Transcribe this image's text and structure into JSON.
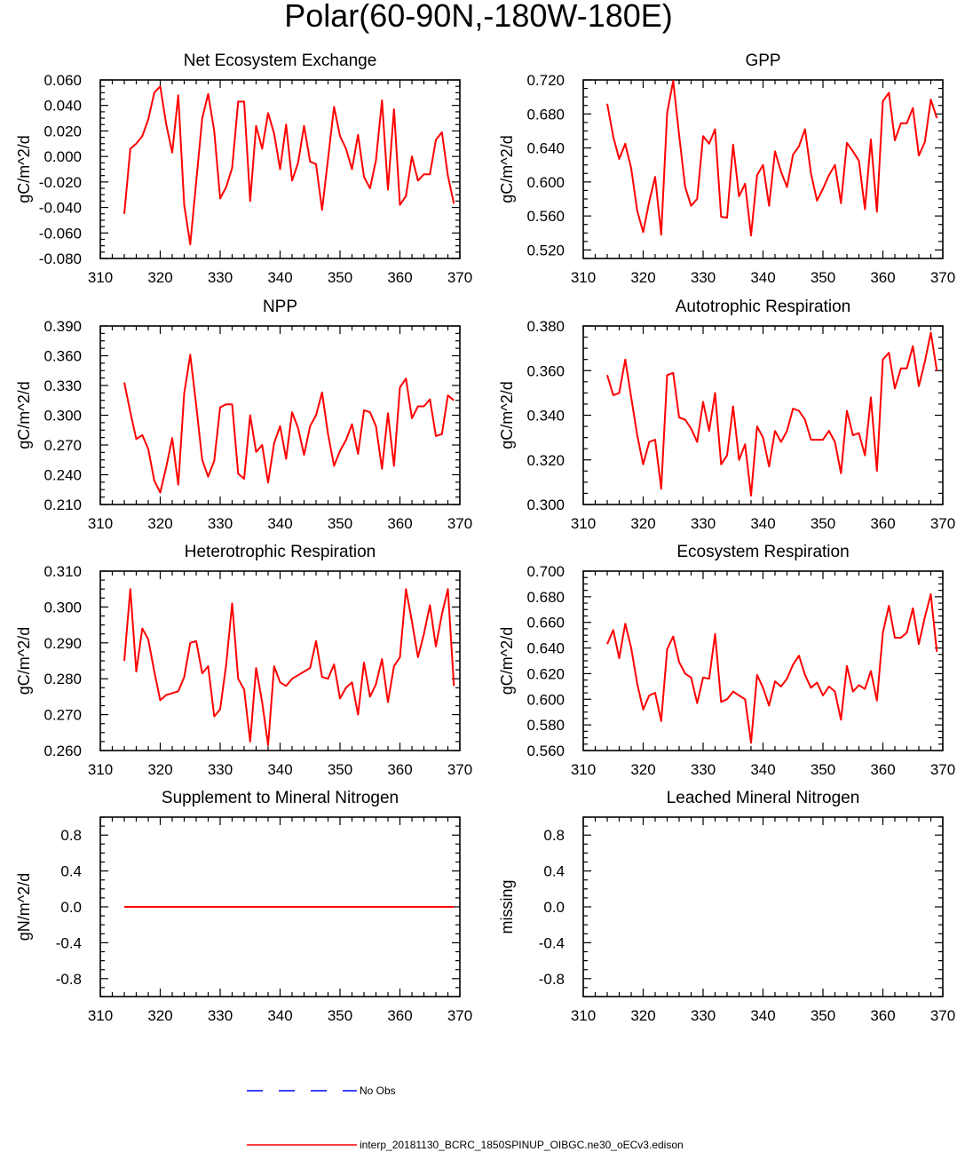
{
  "title": "Polar(60-90N,-180W-180E)",
  "legend": [
    {
      "label": "No Obs",
      "color": "#0000ff",
      "dash": true
    },
    {
      "label": "interp_20181130_BCRC_1850SPINUP_OIBGC.ne30_oECv3.edison",
      "color": "#ff0000",
      "dash": false
    }
  ],
  "chart_data": [
    {
      "type": "line",
      "title": "Net Ecosystem Exchange",
      "ylabel": "gC/m^2/d",
      "xlim": [
        310,
        370
      ],
      "ylim": [
        -0.08,
        0.06
      ],
      "xticks": [
        "310",
        "320",
        "330",
        "340",
        "350",
        "360",
        "370"
      ],
      "yticks": [
        "-0.080",
        "-0.060",
        "-0.040",
        "-0.020",
        "0.000",
        "0.020",
        "0.040",
        "0.060"
      ],
      "x": [
        314,
        315,
        316,
        317,
        318,
        319,
        320,
        321,
        322,
        323,
        324,
        325,
        326,
        327,
        328,
        329,
        330,
        331,
        332,
        333,
        334,
        335,
        336,
        337,
        338,
        339,
        340,
        341,
        342,
        343,
        344,
        345,
        346,
        347,
        348,
        349,
        350,
        351,
        352,
        353,
        354,
        355,
        356,
        357,
        358,
        359,
        360,
        361,
        362,
        363,
        364,
        365,
        366,
        367,
        368,
        369
      ],
      "values": [
        -0.045,
        0.006,
        0.01,
        0.016,
        0.029,
        0.05,
        0.055,
        0.025,
        0.003,
        0.048,
        -0.038,
        -0.069,
        -0.02,
        0.03,
        0.049,
        0.02,
        -0.033,
        -0.024,
        -0.009,
        0.043,
        0.043,
        -0.035,
        0.024,
        0.006,
        0.034,
        0.018,
        -0.01,
        0.025,
        -0.019,
        -0.005,
        0.024,
        -0.004,
        -0.006,
        -0.042,
        -0.002,
        0.039,
        0.016,
        0.006,
        -0.01,
        0.017,
        -0.016,
        -0.025,
        -0.003,
        0.044,
        -0.026,
        0.037,
        -0.038,
        -0.031,
        0.0,
        -0.019,
        -0.014,
        -0.014,
        0.013,
        0.019,
        -0.015,
        -0.037
      ],
      "ylabel_present": true
    },
    {
      "type": "line",
      "title": "GPP",
      "ylabel": "gC/m^2/d",
      "xlim": [
        310,
        370
      ],
      "ylim": [
        0.51,
        0.72
      ],
      "xticks": [
        "310",
        "320",
        "330",
        "340",
        "350",
        "360",
        "370"
      ],
      "yticks": [
        "0.520",
        "0.560",
        "0.600",
        "0.640",
        "0.680",
        "0.720"
      ],
      "x": [
        314,
        315,
        316,
        317,
        318,
        319,
        320,
        321,
        322,
        323,
        324,
        325,
        326,
        327,
        328,
        329,
        330,
        331,
        332,
        333,
        334,
        335,
        336,
        337,
        338,
        339,
        340,
        341,
        342,
        343,
        344,
        345,
        346,
        347,
        348,
        349,
        350,
        351,
        352,
        353,
        354,
        355,
        356,
        357,
        358,
        359,
        360,
        361,
        362,
        363,
        364,
        365,
        366,
        367,
        368,
        369
      ],
      "values": [
        0.692,
        0.653,
        0.627,
        0.645,
        0.616,
        0.566,
        0.541,
        0.577,
        0.606,
        0.538,
        0.681,
        0.719,
        0.655,
        0.594,
        0.572,
        0.58,
        0.654,
        0.645,
        0.662,
        0.559,
        0.558,
        0.644,
        0.583,
        0.598,
        0.537,
        0.608,
        0.62,
        0.572,
        0.636,
        0.612,
        0.594,
        0.632,
        0.642,
        0.662,
        0.61,
        0.578,
        0.592,
        0.608,
        0.62,
        0.575,
        0.646,
        0.636,
        0.625,
        0.568,
        0.65,
        0.565,
        0.695,
        0.705,
        0.649,
        0.669,
        0.669,
        0.687,
        0.631,
        0.647,
        0.697,
        0.675
      ],
      "ylabel_present": true
    },
    {
      "type": "line",
      "title": "NPP",
      "ylabel": "gC/m^2/d",
      "xlim": [
        310,
        370
      ],
      "ylim": [
        0.21,
        0.39
      ],
      "xticks": [
        "310",
        "320",
        "330",
        "340",
        "350",
        "360",
        "370"
      ],
      "yticks": [
        "0.210",
        "0.240",
        "0.270",
        "0.300",
        "0.330",
        "0.360",
        "0.390"
      ],
      "x": [
        314,
        315,
        316,
        317,
        318,
        319,
        320,
        321,
        322,
        323,
        324,
        325,
        326,
        327,
        328,
        329,
        330,
        331,
        332,
        333,
        334,
        335,
        336,
        337,
        338,
        339,
        340,
        341,
        342,
        343,
        344,
        345,
        346,
        347,
        348,
        349,
        350,
        351,
        352,
        353,
        354,
        355,
        356,
        357,
        358,
        359,
        360,
        361,
        362,
        363,
        364,
        365,
        366,
        367,
        368,
        369
      ],
      "values": [
        0.333,
        0.303,
        0.276,
        0.28,
        0.266,
        0.234,
        0.222,
        0.248,
        0.277,
        0.23,
        0.322,
        0.361,
        0.31,
        0.255,
        0.238,
        0.254,
        0.308,
        0.311,
        0.311,
        0.241,
        0.236,
        0.3,
        0.263,
        0.27,
        0.232,
        0.272,
        0.289,
        0.256,
        0.303,
        0.287,
        0.26,
        0.289,
        0.3,
        0.323,
        0.281,
        0.249,
        0.264,
        0.275,
        0.291,
        0.261,
        0.305,
        0.303,
        0.289,
        0.246,
        0.302,
        0.249,
        0.328,
        0.337,
        0.297,
        0.309,
        0.309,
        0.316,
        0.279,
        0.281,
        0.32,
        0.315
      ],
      "ylabel_present": true
    },
    {
      "type": "line",
      "title": "Autotrophic Respiration",
      "ylabel": "gC/m^2/d",
      "xlim": [
        310,
        370
      ],
      "ylim": [
        0.3,
        0.38
      ],
      "xticks": [
        "310",
        "320",
        "330",
        "340",
        "350",
        "360",
        "370"
      ],
      "yticks": [
        "0.300",
        "0.320",
        "0.340",
        "0.360",
        "0.380"
      ],
      "x": [
        314,
        315,
        316,
        317,
        318,
        319,
        320,
        321,
        322,
        323,
        324,
        325,
        326,
        327,
        328,
        329,
        330,
        331,
        332,
        333,
        334,
        335,
        336,
        337,
        338,
        339,
        340,
        341,
        342,
        343,
        344,
        345,
        346,
        347,
        348,
        349,
        350,
        351,
        352,
        353,
        354,
        355,
        356,
        357,
        358,
        359,
        360,
        361,
        362,
        363,
        364,
        365,
        366,
        367,
        368,
        369
      ],
      "values": [
        0.358,
        0.349,
        0.35,
        0.365,
        0.348,
        0.331,
        0.318,
        0.328,
        0.329,
        0.307,
        0.358,
        0.359,
        0.339,
        0.338,
        0.334,
        0.328,
        0.346,
        0.333,
        0.35,
        0.318,
        0.322,
        0.344,
        0.32,
        0.327,
        0.304,
        0.335,
        0.33,
        0.317,
        0.333,
        0.328,
        0.333,
        0.343,
        0.342,
        0.338,
        0.329,
        0.329,
        0.329,
        0.333,
        0.328,
        0.314,
        0.342,
        0.331,
        0.332,
        0.322,
        0.348,
        0.315,
        0.365,
        0.368,
        0.352,
        0.361,
        0.361,
        0.371,
        0.353,
        0.364,
        0.377,
        0.36
      ],
      "ylabel_present": true
    },
    {
      "type": "line",
      "title": "Heterotrophic Respiration",
      "ylabel": "gC/m^2/d",
      "xlim": [
        310,
        370
      ],
      "ylim": [
        0.26,
        0.31
      ],
      "xticks": [
        "310",
        "320",
        "330",
        "340",
        "350",
        "360",
        "370"
      ],
      "yticks": [
        "0.260",
        "0.270",
        "0.280",
        "0.290",
        "0.300",
        "0.310"
      ],
      "x": [
        314,
        315,
        316,
        317,
        318,
        319,
        320,
        321,
        322,
        323,
        324,
        325,
        326,
        327,
        328,
        329,
        330,
        331,
        332,
        333,
        334,
        335,
        336,
        337,
        338,
        339,
        340,
        341,
        342,
        343,
        344,
        345,
        346,
        347,
        348,
        349,
        350,
        351,
        352,
        353,
        354,
        355,
        356,
        357,
        358,
        359,
        360,
        361,
        362,
        363,
        364,
        365,
        366,
        367,
        368,
        369
      ],
      "values": [
        0.285,
        0.305,
        0.282,
        0.294,
        0.291,
        0.282,
        0.274,
        0.2755,
        0.276,
        0.2765,
        0.2805,
        0.29,
        0.2905,
        0.2815,
        0.2835,
        0.2695,
        0.2715,
        0.284,
        0.301,
        0.28,
        0.277,
        0.2625,
        0.283,
        0.2735,
        0.2615,
        0.2835,
        0.279,
        0.278,
        0.28,
        0.281,
        0.282,
        0.283,
        0.2905,
        0.2805,
        0.28,
        0.284,
        0.2745,
        0.2775,
        0.279,
        0.27,
        0.2845,
        0.275,
        0.2785,
        0.2855,
        0.2735,
        0.2835,
        0.286,
        0.305,
        0.296,
        0.286,
        0.2925,
        0.3005,
        0.289,
        0.298,
        0.305,
        0.278
      ],
      "ylabel_present": true
    },
    {
      "type": "line",
      "title": "Ecosystem Respiration",
      "ylabel": "gC/m^2/d",
      "xlim": [
        310,
        370
      ],
      "ylim": [
        0.56,
        0.7
      ],
      "xticks": [
        "310",
        "320",
        "330",
        "340",
        "350",
        "360",
        "370"
      ],
      "yticks": [
        "0.560",
        "0.580",
        "0.600",
        "0.620",
        "0.640",
        "0.660",
        "0.680",
        "0.700"
      ],
      "x": [
        314,
        315,
        316,
        317,
        318,
        319,
        320,
        321,
        322,
        323,
        324,
        325,
        326,
        327,
        328,
        329,
        330,
        331,
        332,
        333,
        334,
        335,
        336,
        337,
        338,
        339,
        340,
        341,
        342,
        343,
        344,
        345,
        346,
        347,
        348,
        349,
        350,
        351,
        352,
        353,
        354,
        355,
        356,
        357,
        358,
        359,
        360,
        361,
        362,
        363,
        364,
        365,
        366,
        367,
        368,
        369
      ],
      "values": [
        0.643,
        0.654,
        0.632,
        0.659,
        0.64,
        0.612,
        0.592,
        0.603,
        0.605,
        0.583,
        0.639,
        0.649,
        0.629,
        0.62,
        0.617,
        0.597,
        0.617,
        0.616,
        0.651,
        0.598,
        0.6,
        0.606,
        0.603,
        0.6,
        0.566,
        0.619,
        0.609,
        0.595,
        0.614,
        0.61,
        0.616,
        0.627,
        0.634,
        0.619,
        0.609,
        0.613,
        0.603,
        0.61,
        0.606,
        0.584,
        0.626,
        0.606,
        0.611,
        0.608,
        0.622,
        0.599,
        0.652,
        0.673,
        0.648,
        0.648,
        0.652,
        0.671,
        0.643,
        0.664,
        0.682,
        0.637
      ],
      "ylabel_present": true
    },
    {
      "type": "line",
      "title": "Supplement to Mineral Nitrogen",
      "ylabel": "gN/m^2/d",
      "xlim": [
        310,
        370
      ],
      "ylim": [
        -1.0,
        1.0
      ],
      "xticks": [
        "310",
        "320",
        "330",
        "340",
        "350",
        "360",
        "370"
      ],
      "yticks": [
        "-0.8",
        "-0.4",
        "0.0",
        "0.4",
        "0.8"
      ],
      "x": [
        314,
        369
      ],
      "values": [
        0.0,
        0.0
      ],
      "ylabel_present": true
    },
    {
      "type": "line",
      "title": "Leached Mineral Nitrogen",
      "ylabel": "missing",
      "xlim": [
        310,
        370
      ],
      "ylim": [
        -1.0,
        1.0
      ],
      "xticks": [
        "310",
        "320",
        "330",
        "340",
        "350",
        "360",
        "370"
      ],
      "yticks": [
        "-0.8",
        "-0.4",
        "0.0",
        "0.4",
        "0.8"
      ],
      "x": [],
      "values": [],
      "ylabel_present": true
    }
  ]
}
